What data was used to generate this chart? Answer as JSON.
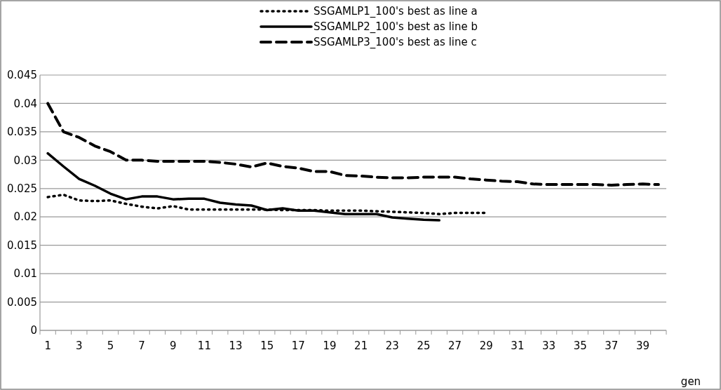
{
  "chart_data": {
    "type": "line",
    "xlabel": "gen",
    "x": [
      1,
      2,
      3,
      4,
      5,
      6,
      7,
      8,
      9,
      10,
      11,
      12,
      13,
      14,
      15,
      16,
      17,
      18,
      19,
      20,
      21,
      22,
      23,
      24,
      25,
      26,
      27,
      28,
      29,
      30,
      31,
      32,
      33,
      34,
      35,
      36,
      37,
      38,
      39,
      40
    ],
    "xlim": [
      0.5,
      40.5
    ],
    "xticks": [
      1,
      3,
      5,
      7,
      9,
      11,
      13,
      15,
      17,
      19,
      21,
      23,
      25,
      27,
      29,
      31,
      33,
      35,
      37,
      39
    ],
    "ylim": [
      0,
      0.045
    ],
    "yticks": [
      0,
      0.005,
      0.01,
      0.015,
      0.02,
      0.025,
      0.03,
      0.035,
      0.04,
      0.045
    ],
    "grid": "y",
    "legend": "top",
    "marker": "none",
    "series": [
      {
        "name": "SSGAMLP1_100's best as line a",
        "color": "#000000",
        "line_style": "dotted",
        "values": [
          0.0235,
          0.0239,
          0.0229,
          0.0228,
          0.0229,
          0.0223,
          0.0218,
          0.0215,
          0.0219,
          0.0213,
          0.0213,
          0.0213,
          0.0213,
          0.0213,
          0.0213,
          0.0212,
          0.0212,
          0.0212,
          0.0211,
          0.0211,
          0.0211,
          0.021,
          0.0209,
          0.0208,
          0.0207,
          0.0205,
          0.0207,
          0.0207,
          0.0207,
          null,
          null,
          null,
          null,
          null,
          null,
          null,
          null,
          null,
          null,
          null
        ]
      },
      {
        "name": "SSGAMLP2_100's best as line b",
        "color": "#000000",
        "line_style": "solid",
        "values": [
          0.0312,
          0.0289,
          0.0267,
          0.0255,
          0.0241,
          0.0231,
          0.0236,
          0.0236,
          0.0231,
          0.0232,
          0.0232,
          0.0225,
          0.0222,
          0.022,
          0.0212,
          0.0215,
          0.0211,
          0.0211,
          0.0208,
          0.0205,
          0.0205,
          0.0205,
          0.0199,
          0.0197,
          0.0195,
          0.0194,
          null,
          null,
          null,
          null,
          null,
          null,
          null,
          null,
          null,
          null,
          null,
          null,
          null,
          null
        ]
      },
      {
        "name": "SSGAMLP3_100's best as line c",
        "color": "#000000",
        "line_style": "dashed",
        "values": [
          0.04,
          0.035,
          0.034,
          0.0325,
          0.0315,
          0.03,
          0.03,
          0.0298,
          0.0298,
          0.0298,
          0.0298,
          0.0296,
          0.0293,
          0.0288,
          0.0295,
          0.0289,
          0.0286,
          0.028,
          0.028,
          0.0273,
          0.0272,
          0.027,
          0.0269,
          0.0269,
          0.027,
          0.027,
          0.027,
          0.0267,
          0.0265,
          0.0263,
          0.0262,
          0.0258,
          0.0257,
          0.0257,
          0.0257,
          0.0257,
          0.0256,
          0.0257,
          0.0258,
          0.0257
        ]
      }
    ]
  }
}
